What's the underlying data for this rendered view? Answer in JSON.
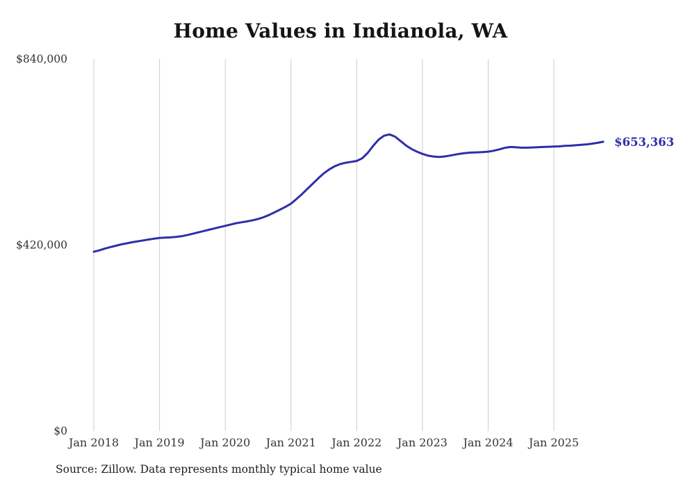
{
  "chart": {
    "title": "Home Values in Indianola, WA",
    "source": "Source: Zillow. Data represents monthly typical home value",
    "line_color": "#2e2ea8",
    "grid_color": "#cccccc",
    "axis_text_color": "#333333",
    "end_label": "$653,363"
  },
  "chart_data": {
    "type": "line",
    "title": "Home Values in Indianola, WA",
    "source": "Source: Zillow. Data represents monthly typical home value",
    "x_start": "2018-01",
    "x_interval": "month",
    "x_tick_labels": [
      "Jan 2018",
      "Jan 2019",
      "Jan 2020",
      "Jan 2021",
      "Jan 2022",
      "Jan 2023",
      "Jan 2024",
      "Jan 2025"
    ],
    "y_ticks": [
      {
        "value": 0,
        "label": "$0"
      },
      {
        "value": 420000,
        "label": "$420,000"
      },
      {
        "value": 840000,
        "label": "$840,000"
      }
    ],
    "ylim": [
      0,
      840000
    ],
    "grid": "vertical-only",
    "legend": "none",
    "final_value": 653363,
    "final_value_label": "$653,363",
    "series": [
      {
        "name": "Typical home value",
        "values": [
          405000,
          408000,
          412000,
          415500,
          418500,
          421500,
          424000,
          426500,
          428500,
          430500,
          432500,
          434500,
          436000,
          437000,
          437500,
          438500,
          440000,
          442500,
          445500,
          448500,
          451500,
          454500,
          457500,
          460500,
          463500,
          466500,
          469500,
          471500,
          473500,
          476000,
          479000,
          483000,
          488000,
          494000,
          500000,
          506500,
          513500,
          524000,
          535000,
          547000,
          559000,
          571000,
          582000,
          591000,
          598000,
          603000,
          606000,
          608000,
          610000,
          616000,
          628000,
          644000,
          658000,
          667000,
          670000,
          665000,
          655000,
          645000,
          637000,
          631000,
          626000,
          622000,
          620000,
          619000,
          620000,
          622000,
          624500,
          626500,
          628000,
          629000,
          629500,
          630000,
          631000,
          633000,
          636000,
          639500,
          641500,
          641000,
          640000,
          640000,
          640500,
          641000,
          641500,
          642000,
          642500,
          643000,
          644000,
          644500,
          645500,
          646500,
          647500,
          649000,
          651000,
          653363
        ]
      }
    ]
  }
}
